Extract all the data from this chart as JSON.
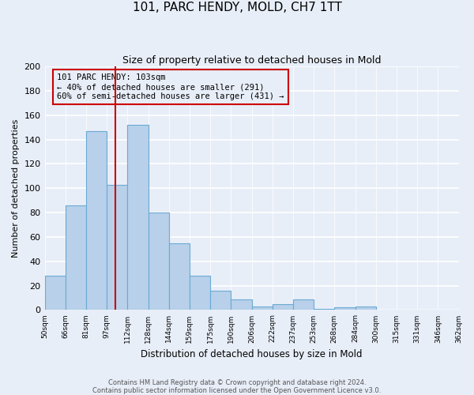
{
  "title": "101, PARC HENDY, MOLD, CH7 1TT",
  "subtitle": "Size of property relative to detached houses in Mold",
  "xlabel": "Distribution of detached houses by size in Mold",
  "ylabel": "Number of detached properties",
  "bin_labels": [
    "50sqm",
    "66sqm",
    "81sqm",
    "97sqm",
    "112sqm",
    "128sqm",
    "144sqm",
    "159sqm",
    "175sqm",
    "190sqm",
    "206sqm",
    "222sqm",
    "237sqm",
    "253sqm",
    "268sqm",
    "284sqm",
    "300sqm",
    "315sqm",
    "331sqm",
    "346sqm",
    "362sqm"
  ],
  "bar_values": [
    28,
    86,
    147,
    103,
    152,
    80,
    55,
    28,
    16,
    9,
    3,
    5,
    9,
    1,
    2,
    3,
    0,
    0,
    0,
    0
  ],
  "bar_color": "#b8d0ea",
  "bar_edge_color": "#6aaad4",
  "ylim": [
    0,
    200
  ],
  "yticks": [
    0,
    20,
    40,
    60,
    80,
    100,
    120,
    140,
    160,
    180,
    200
  ],
  "vline_color": "#cc0000",
  "annotation_title": "101 PARC HENDY: 103sqm",
  "annotation_line1": "← 40% of detached houses are smaller (291)",
  "annotation_line2": "60% of semi-detached houses are larger (431) →",
  "annotation_box_color": "#cc0000",
  "footer_line1": "Contains HM Land Registry data © Crown copyright and database right 2024.",
  "footer_line2": "Contains public sector information licensed under the Open Government Licence v3.0.",
  "background_color": "#e8eef8",
  "grid_color": "#ffffff"
}
